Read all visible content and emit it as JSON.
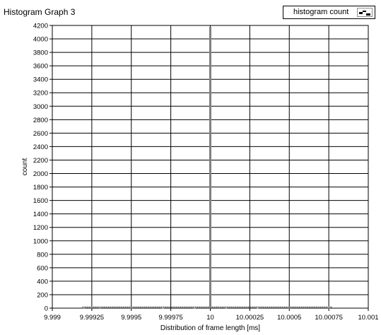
{
  "graph": {
    "title": "Histogram Graph 3",
    "legend_label": "histogram count",
    "legend_swatch_icon": "histogram-step-plot-icon"
  },
  "colors": {
    "plot_background": "#ffffff",
    "grid": "#000000",
    "bars": "#808080"
  },
  "chart_data": {
    "type": "bar",
    "title": "Histogram Graph 3",
    "xlabel": "Distribution of frame length [ms]",
    "ylabel": "count",
    "xlim": [
      9.999,
      10.001
    ],
    "ylim": [
      0,
      4200
    ],
    "grid": true,
    "legend": "top-right",
    "x_tick_labels": [
      "9.999",
      "9.99925",
      "9.9995",
      "9.99975",
      "10",
      "10.00025",
      "10.0005",
      "10.00075",
      "10.001"
    ],
    "y_tick_labels": [
      "0",
      "200",
      "400",
      "600",
      "800",
      "1000",
      "1200",
      "1400",
      "1600",
      "1800",
      "2000",
      "2200",
      "2400",
      "2600",
      "2800",
      "3000",
      "3200",
      "3400",
      "3600",
      "3800",
      "4000",
      "4200"
    ],
    "series": [
      {
        "name": "histogram count",
        "points": [
          {
            "x": 9.9992,
            "y": 8
          },
          {
            "x": 9.99925,
            "y": 15
          },
          {
            "x": 9.9993,
            "y": 9
          },
          {
            "x": 9.9995,
            "y": 6
          },
          {
            "x": 9.9997,
            "y": 5
          },
          {
            "x": 9.9999,
            "y": 6
          },
          {
            "x": 10.0,
            "y": 4180
          },
          {
            "x": 10.00005,
            "y": 18
          },
          {
            "x": 10.0001,
            "y": 7
          },
          {
            "x": 10.0003,
            "y": 5
          },
          {
            "x": 10.0005,
            "y": 5
          },
          {
            "x": 10.00075,
            "y": 6
          }
        ]
      }
    ]
  }
}
